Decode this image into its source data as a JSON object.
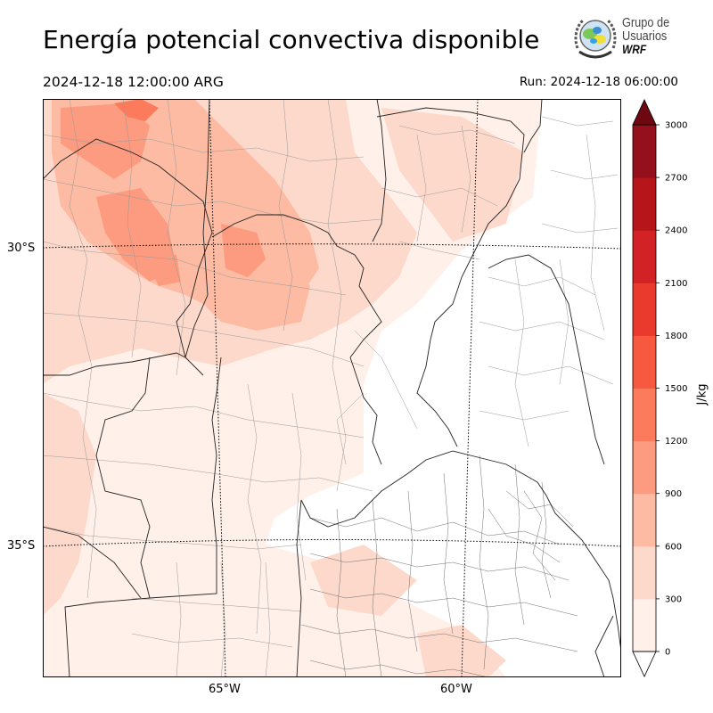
{
  "header": {
    "title": "Energía potencial convectiva disponible",
    "valid_time": "2024-12-18 12:00:00 ARG",
    "run_time": "Run: 2024-12-18 06:00:00"
  },
  "logo": {
    "line1": "Grupo de",
    "line2": "Usuarios",
    "line3": "WRF"
  },
  "map": {
    "lat_labels": [
      "30°S",
      "35°S"
    ],
    "lon_labels": [
      "65°W",
      "60°W"
    ]
  },
  "colorbar": {
    "label": "J/kg",
    "ticks": [
      "0",
      "300",
      "600",
      "900",
      "1200",
      "1500",
      "1800",
      "2100",
      "2400",
      "2700",
      "3000"
    ],
    "colors": [
      "#fff0ea",
      "#fdd9cb",
      "#fcbba2",
      "#fc9b7f",
      "#fb7b5c",
      "#f65840",
      "#ea3a2d",
      "#d22225",
      "#b61519",
      "#95101d",
      "#6d0812"
    ],
    "extend": "both"
  }
}
